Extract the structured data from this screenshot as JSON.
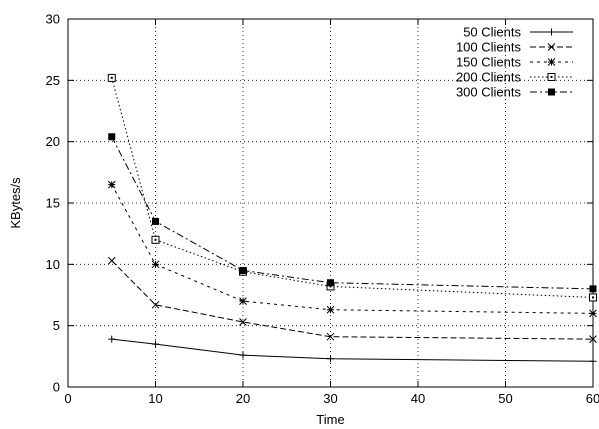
{
  "chart_data": {
    "type": "line",
    "title": "",
    "xlabel": "Time",
    "ylabel": "KBytes/s",
    "xlim": [
      0,
      60
    ],
    "ylim": [
      0,
      30
    ],
    "xticks": [
      0,
      10,
      20,
      30,
      40,
      50,
      60
    ],
    "yticks": [
      0,
      5,
      10,
      15,
      20,
      25,
      30
    ],
    "grid": true,
    "legend_position": "top-right",
    "x": [
      5,
      10,
      20,
      30,
      60
    ],
    "series": [
      {
        "name": "50 Clients",
        "values": [
          3.9,
          3.5,
          2.6,
          2.3,
          2.1
        ],
        "marker": "plus",
        "dash": "solid"
      },
      {
        "name": "100 Clients",
        "values": [
          10.3,
          6.7,
          5.3,
          4.1,
          3.9
        ],
        "marker": "cross",
        "dash": "dashed"
      },
      {
        "name": "150 Clients",
        "values": [
          16.5,
          10.0,
          7.0,
          6.3,
          6.0
        ],
        "marker": "star",
        "dash": "dotted"
      },
      {
        "name": "200 Clients",
        "values": [
          25.2,
          12.0,
          9.4,
          8.2,
          7.3
        ],
        "marker": "open-square",
        "dash": "fine-dotted"
      },
      {
        "name": "300 Clients",
        "values": [
          20.4,
          13.5,
          9.5,
          8.5,
          8.0
        ],
        "marker": "filled-square",
        "dash": "dash-dot"
      }
    ]
  }
}
